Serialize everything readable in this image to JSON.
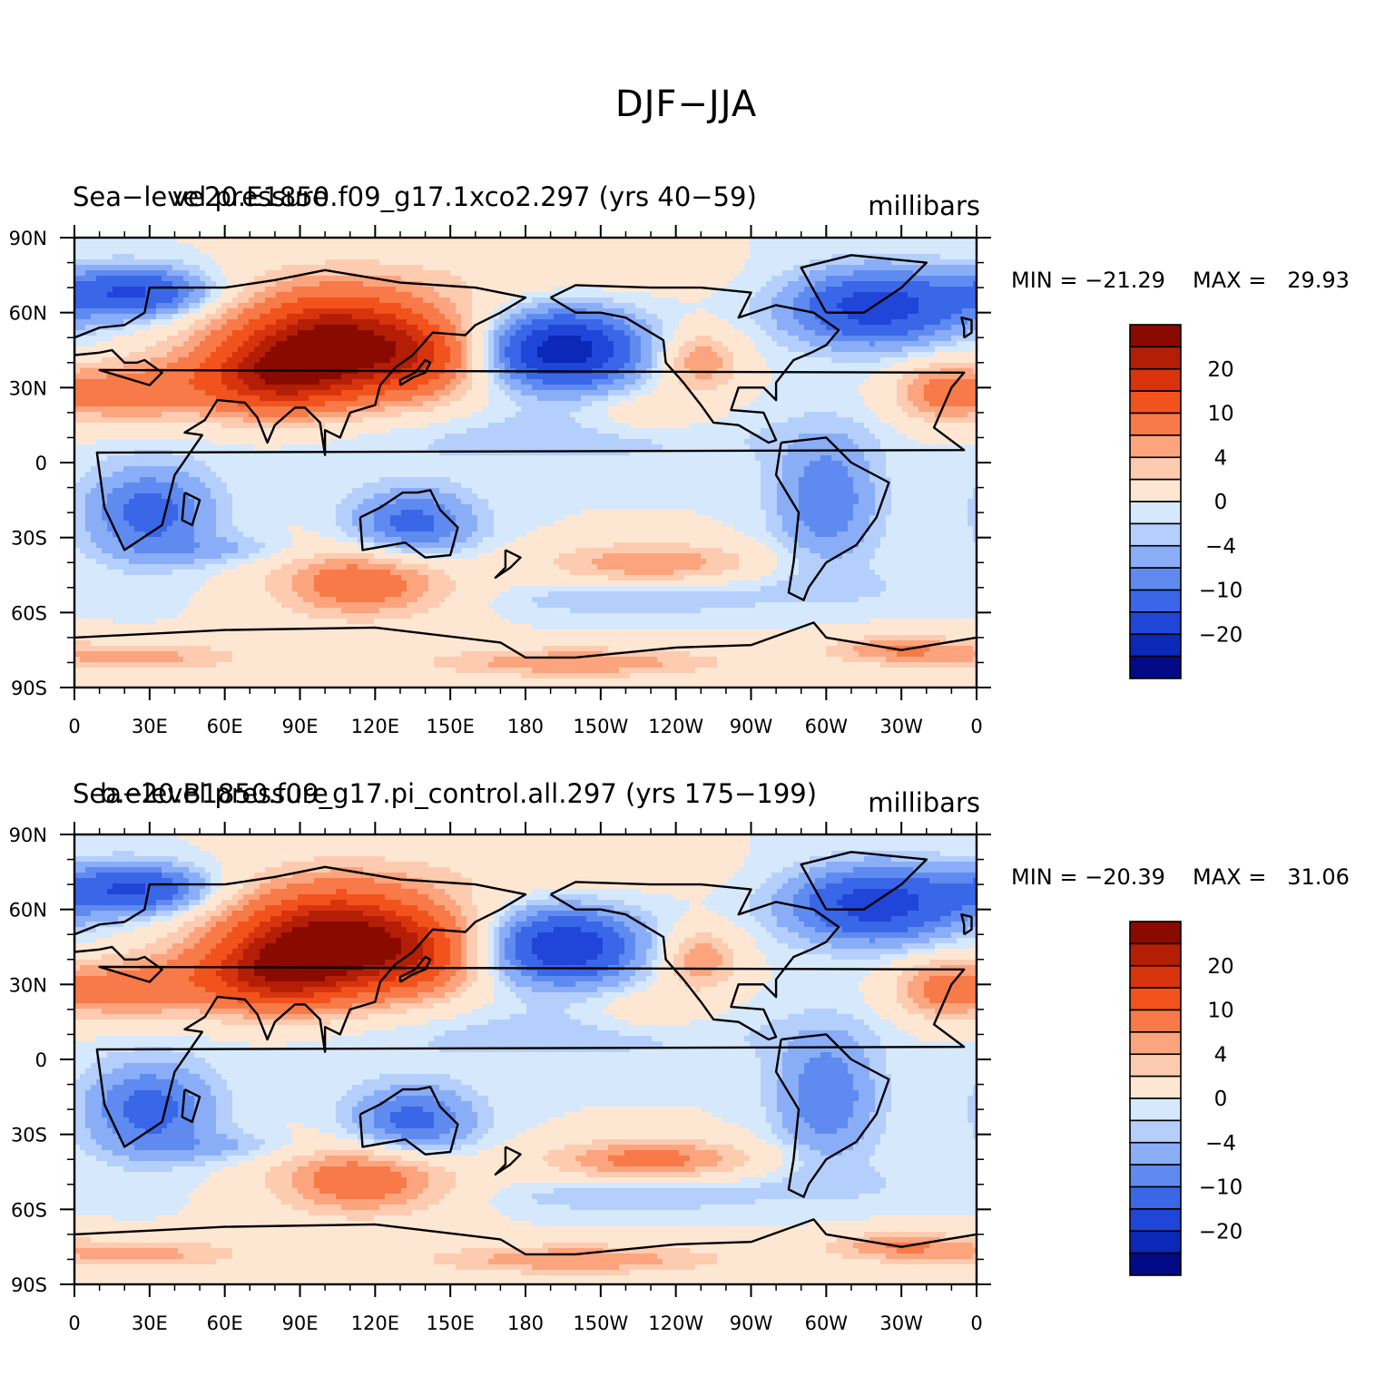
{
  "figure": {
    "title": "DJF−JJA"
  },
  "chart_data": [
    {
      "type": "heatmap",
      "title": "ve20.E1850.f09_g17.1xco2.297 (yrs 40−59)",
      "subtitle": "Sea−level pressure",
      "units": "millibars",
      "min_label": "MIN = −21.29",
      "max_label": "MAX =   29.93",
      "min": -21.29,
      "max": 29.93,
      "x_ticks": [
        "0",
        "30E",
        "60E",
        "90E",
        "120E",
        "150E",
        "180",
        "150W",
        "120W",
        "90W",
        "60W",
        "30W",
        "0"
      ],
      "y_ticks": [
        "90N",
        "60N",
        "30N",
        "0",
        "30S",
        "60S",
        "90S"
      ],
      "xlim": [
        0,
        360
      ],
      "ylim": [
        -90,
        90
      ],
      "colorbar_labels": [
        "20",
        "10",
        "4",
        "0",
        "−4",
        "−10",
        "−20"
      ]
    },
    {
      "type": "heatmap",
      "title": "b.e20.B1850.f09_g17.pi_control.all.297 (yrs 175−199)",
      "subtitle": "Sea−level pressure",
      "units": "millibars",
      "min_label": "MIN = −20.39",
      "max_label": "MAX =   31.06",
      "min": -20.39,
      "max": 31.06,
      "x_ticks": [
        "0",
        "30E",
        "60E",
        "90E",
        "120E",
        "150E",
        "180",
        "150W",
        "120W",
        "90W",
        "60W",
        "30W",
        "0"
      ],
      "y_ticks": [
        "90N",
        "60N",
        "30N",
        "0",
        "30S",
        "60S",
        "90S"
      ],
      "xlim": [
        0,
        360
      ],
      "ylim": [
        -90,
        90
      ],
      "colorbar_labels": [
        "20",
        "10",
        "4",
        "0",
        "−4",
        "−10",
        "−20"
      ]
    }
  ],
  "palette": [
    "#8a0a00",
    "#b41e06",
    "#d7340e",
    "#f2521c",
    "#f77a48",
    "#fba47e",
    "#fdcbb0",
    "#fde7d3",
    "#d6e9fc",
    "#b4cffc",
    "#8aadf8",
    "#5f8bf0",
    "#3a66e8",
    "#1f46d8",
    "#0c28b8",
    "#020a86"
  ]
}
